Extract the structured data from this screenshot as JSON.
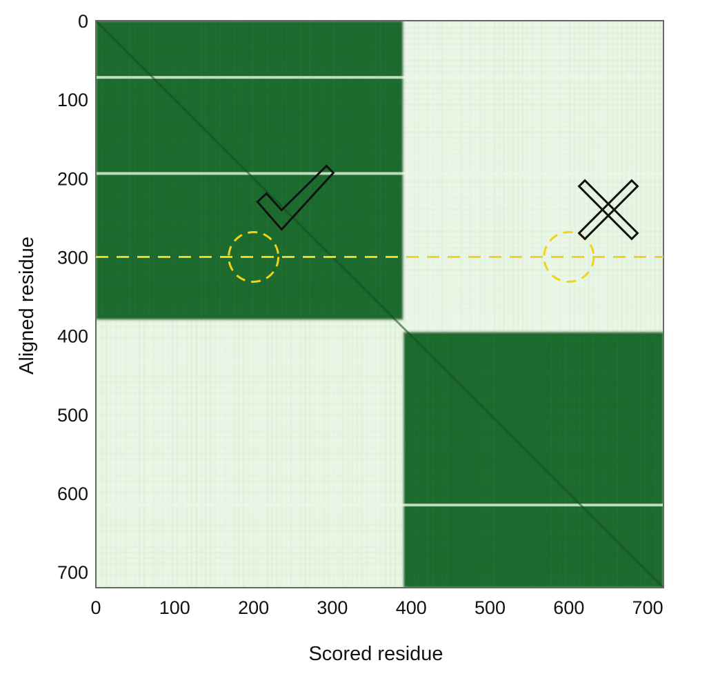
{
  "chart_data": {
    "type": "heatmap",
    "xlabel": "Scored residue",
    "ylabel": "Aligned residue",
    "xlim": [
      0,
      720
    ],
    "ylim": [
      0,
      720
    ],
    "y_inverted": true,
    "x_ticks": [
      0,
      100,
      200,
      300,
      400,
      500,
      600,
      700
    ],
    "y_ticks": [
      0,
      100,
      200,
      300,
      400,
      500,
      600,
      700
    ],
    "x_tick_labels": [
      "0",
      "100",
      "200",
      "300",
      "400",
      "500",
      "600",
      "700"
    ],
    "y_tick_labels": [
      "0",
      "100",
      "200",
      "300",
      "400",
      "500",
      "600",
      "700"
    ],
    "colorscale": {
      "high": "#1e6b2d",
      "low": "#eaf6e6"
    },
    "domains": [
      {
        "start": 0,
        "end": 390
      },
      {
        "start": 395,
        "end": 720
      }
    ],
    "blocks": [
      {
        "x": [
          0,
          390
        ],
        "y": [
          0,
          380
        ],
        "level": "high"
      },
      {
        "x": [
          390,
          720
        ],
        "y": [
          0,
          395
        ],
        "level": "low"
      },
      {
        "x": [
          0,
          390
        ],
        "y": [
          380,
          720
        ],
        "level": "low"
      },
      {
        "x": [
          390,
          720
        ],
        "y": [
          395,
          720
        ],
        "level": "high"
      }
    ],
    "diagonal": {
      "from": [
        0,
        0
      ],
      "to": [
        720,
        720
      ]
    },
    "light_bands": [
      {
        "axis": "y",
        "value": 72
      },
      {
        "axis": "y",
        "value": 194
      },
      {
        "axis": "y",
        "value": 615
      }
    ],
    "reference_line": {
      "axis": "y",
      "value": 300,
      "color": "#f2d21b",
      "style": "dashed"
    },
    "markers": [
      {
        "type": "circle",
        "x": 200,
        "y": 300,
        "color": "#f2d21b",
        "style": "dashed"
      },
      {
        "type": "circle",
        "x": 600,
        "y": 300,
        "color": "#f2d21b",
        "style": "dashed"
      },
      {
        "type": "check",
        "x": 240,
        "y": 230,
        "color": "#111111"
      },
      {
        "type": "cross",
        "x": 650,
        "y": 240,
        "color": "#111111"
      }
    ]
  }
}
